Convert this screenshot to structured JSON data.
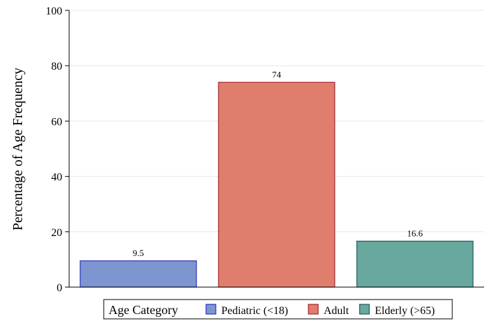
{
  "chart_data": {
    "type": "bar",
    "title": "",
    "xlabel": "",
    "ylabel": "Percentage of Age Frequency",
    "ylim": [
      0,
      100
    ],
    "yticks": [
      0,
      20,
      40,
      60,
      80,
      100
    ],
    "grid": true,
    "categories": [
      "Pediatric (<18)",
      "Adult",
      "Elderly (>65)"
    ],
    "values": [
      9.5,
      74,
      16.6
    ],
    "data_labels": [
      "9.5",
      "74",
      "16.6"
    ],
    "colors": {
      "Pediatric (<18)": {
        "fill": "#7e96cf",
        "stroke": "#2a2fb7"
      },
      "Adult": {
        "fill": "#e07e6e",
        "stroke": "#a3222c"
      },
      "Elderly (>65)": {
        "fill": "#68a89f",
        "stroke": "#1b5a50"
      }
    },
    "legend": {
      "title": "Age Category",
      "placement": "bottom",
      "entries": [
        "Pediatric (<18)",
        "Adult",
        "Elderly (>65)"
      ]
    }
  }
}
